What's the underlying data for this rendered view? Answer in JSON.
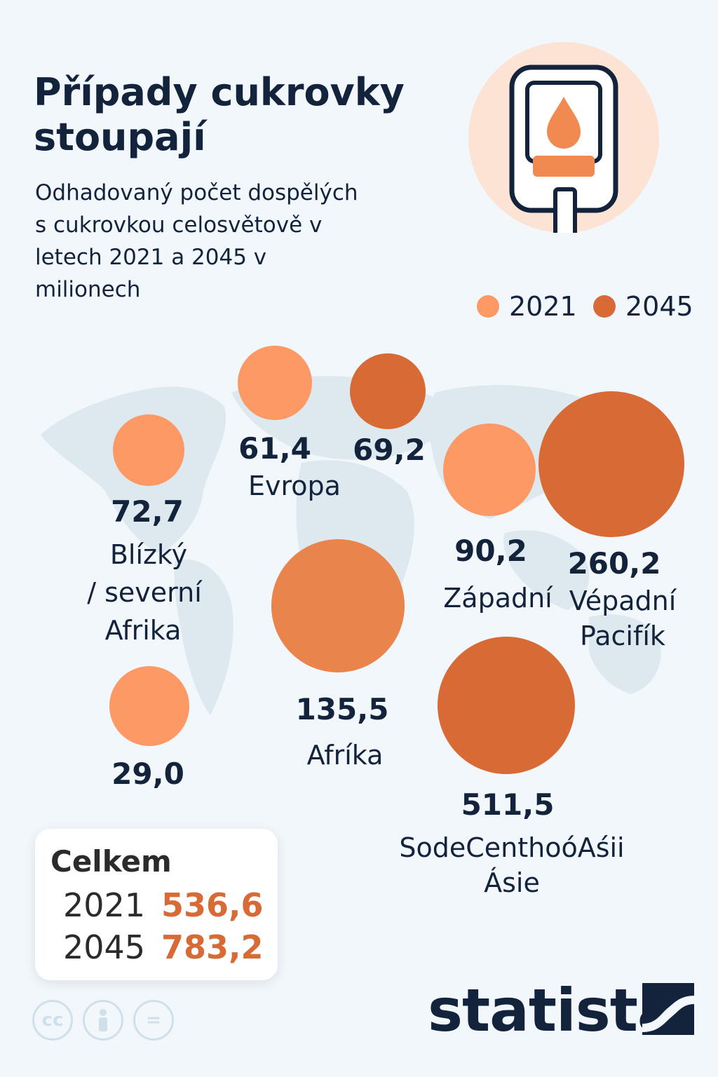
{
  "title": "Případy cukrovky stoupají",
  "subtitle": "Odhadovaný počet dospělých s cukrovkou celosvětově v letech 2021 a 2045 v milionech",
  "colors": {
    "y2021": "#fd9965",
    "y2045": "#d86a36",
    "africa": "#e8844c",
    "text": "#14233c",
    "map": "#dde9ee"
  },
  "legend": [
    {
      "label": "2021",
      "color": "#fd9965"
    },
    {
      "label": "2045",
      "color": "#d86a36"
    }
  ],
  "chart_data": {
    "type": "bubble",
    "unit": "miliony",
    "points": [
      {
        "value": "72,7",
        "region": "Blízký / severní Afrika",
        "year": "2021"
      },
      {
        "value": "61,4",
        "region": "Evropa",
        "year": "2021"
      },
      {
        "value": "69,2",
        "region": "",
        "year": "2045"
      },
      {
        "value": "90,2",
        "region": "Západní",
        "year": "2021"
      },
      {
        "value": "260,2",
        "region": "Vépadní Pacifík",
        "year": "2045"
      },
      {
        "value": "135,5",
        "region": "Afríka",
        "year": "2045"
      },
      {
        "value": "29,0",
        "region": "",
        "year": "2021"
      },
      {
        "value": "511,5",
        "region": "SodeCenthoóAśii Ásie",
        "year": "2045"
      }
    ]
  },
  "totals": {
    "label": "Celkem",
    "rows": [
      {
        "year": "2021",
        "value": "536,6"
      },
      {
        "year": "2045",
        "value": "783,2"
      }
    ]
  },
  "license_icons": [
    "cc",
    "person",
    "="
  ],
  "brand": "statista"
}
